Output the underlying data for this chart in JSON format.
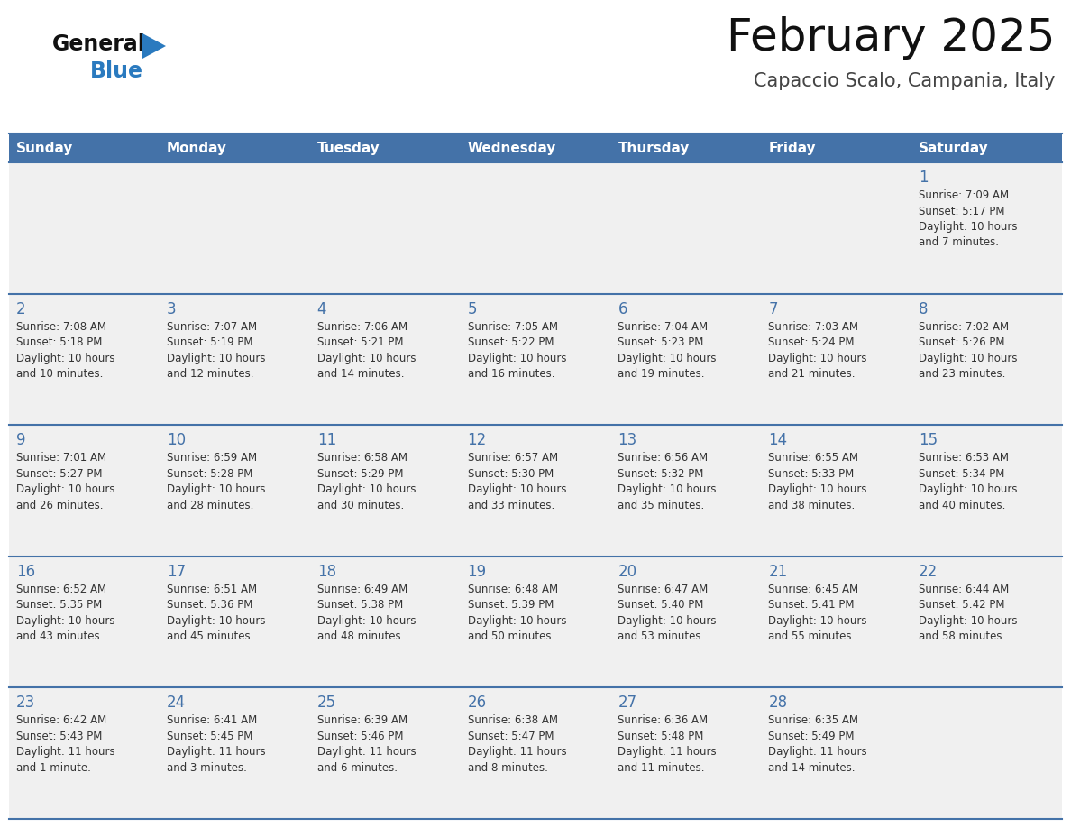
{
  "title": "February 2025",
  "subtitle": "Capaccio Scalo, Campania, Italy",
  "header_bg": "#4472a8",
  "header_text": "#ffffff",
  "row_bg_odd": "#f0f0f0",
  "row_bg_even": "#ffffff",
  "separator_color": "#4472a8",
  "text_color": "#333333",
  "day_number_color": "#4472a8",
  "days_of_week": [
    "Sunday",
    "Monday",
    "Tuesday",
    "Wednesday",
    "Thursday",
    "Friday",
    "Saturday"
  ],
  "logo_general_color": "#111111",
  "logo_blue_color": "#2a7abf",
  "calendar_data": [
    [
      null,
      null,
      null,
      null,
      null,
      null,
      {
        "day": 1,
        "sunrise": "7:09 AM",
        "sunset": "5:17 PM",
        "daylight": "10 hours\nand 7 minutes."
      }
    ],
    [
      {
        "day": 2,
        "sunrise": "7:08 AM",
        "sunset": "5:18 PM",
        "daylight": "10 hours\nand 10 minutes."
      },
      {
        "day": 3,
        "sunrise": "7:07 AM",
        "sunset": "5:19 PM",
        "daylight": "10 hours\nand 12 minutes."
      },
      {
        "day": 4,
        "sunrise": "7:06 AM",
        "sunset": "5:21 PM",
        "daylight": "10 hours\nand 14 minutes."
      },
      {
        "day": 5,
        "sunrise": "7:05 AM",
        "sunset": "5:22 PM",
        "daylight": "10 hours\nand 16 minutes."
      },
      {
        "day": 6,
        "sunrise": "7:04 AM",
        "sunset": "5:23 PM",
        "daylight": "10 hours\nand 19 minutes."
      },
      {
        "day": 7,
        "sunrise": "7:03 AM",
        "sunset": "5:24 PM",
        "daylight": "10 hours\nand 21 minutes."
      },
      {
        "day": 8,
        "sunrise": "7:02 AM",
        "sunset": "5:26 PM",
        "daylight": "10 hours\nand 23 minutes."
      }
    ],
    [
      {
        "day": 9,
        "sunrise": "7:01 AM",
        "sunset": "5:27 PM",
        "daylight": "10 hours\nand 26 minutes."
      },
      {
        "day": 10,
        "sunrise": "6:59 AM",
        "sunset": "5:28 PM",
        "daylight": "10 hours\nand 28 minutes."
      },
      {
        "day": 11,
        "sunrise": "6:58 AM",
        "sunset": "5:29 PM",
        "daylight": "10 hours\nand 30 minutes."
      },
      {
        "day": 12,
        "sunrise": "6:57 AM",
        "sunset": "5:30 PM",
        "daylight": "10 hours\nand 33 minutes."
      },
      {
        "day": 13,
        "sunrise": "6:56 AM",
        "sunset": "5:32 PM",
        "daylight": "10 hours\nand 35 minutes."
      },
      {
        "day": 14,
        "sunrise": "6:55 AM",
        "sunset": "5:33 PM",
        "daylight": "10 hours\nand 38 minutes."
      },
      {
        "day": 15,
        "sunrise": "6:53 AM",
        "sunset": "5:34 PM",
        "daylight": "10 hours\nand 40 minutes."
      }
    ],
    [
      {
        "day": 16,
        "sunrise": "6:52 AM",
        "sunset": "5:35 PM",
        "daylight": "10 hours\nand 43 minutes."
      },
      {
        "day": 17,
        "sunrise": "6:51 AM",
        "sunset": "5:36 PM",
        "daylight": "10 hours\nand 45 minutes."
      },
      {
        "day": 18,
        "sunrise": "6:49 AM",
        "sunset": "5:38 PM",
        "daylight": "10 hours\nand 48 minutes."
      },
      {
        "day": 19,
        "sunrise": "6:48 AM",
        "sunset": "5:39 PM",
        "daylight": "10 hours\nand 50 minutes."
      },
      {
        "day": 20,
        "sunrise": "6:47 AM",
        "sunset": "5:40 PM",
        "daylight": "10 hours\nand 53 minutes."
      },
      {
        "day": 21,
        "sunrise": "6:45 AM",
        "sunset": "5:41 PM",
        "daylight": "10 hours\nand 55 minutes."
      },
      {
        "day": 22,
        "sunrise": "6:44 AM",
        "sunset": "5:42 PM",
        "daylight": "10 hours\nand 58 minutes."
      }
    ],
    [
      {
        "day": 23,
        "sunrise": "6:42 AM",
        "sunset": "5:43 PM",
        "daylight": "11 hours\nand 1 minute."
      },
      {
        "day": 24,
        "sunrise": "6:41 AM",
        "sunset": "5:45 PM",
        "daylight": "11 hours\nand 3 minutes."
      },
      {
        "day": 25,
        "sunrise": "6:39 AM",
        "sunset": "5:46 PM",
        "daylight": "11 hours\nand 6 minutes."
      },
      {
        "day": 26,
        "sunrise": "6:38 AM",
        "sunset": "5:47 PM",
        "daylight": "11 hours\nand 8 minutes."
      },
      {
        "day": 27,
        "sunrise": "6:36 AM",
        "sunset": "5:48 PM",
        "daylight": "11 hours\nand 11 minutes."
      },
      {
        "day": 28,
        "sunrise": "6:35 AM",
        "sunset": "5:49 PM",
        "daylight": "11 hours\nand 14 minutes."
      },
      null
    ]
  ]
}
